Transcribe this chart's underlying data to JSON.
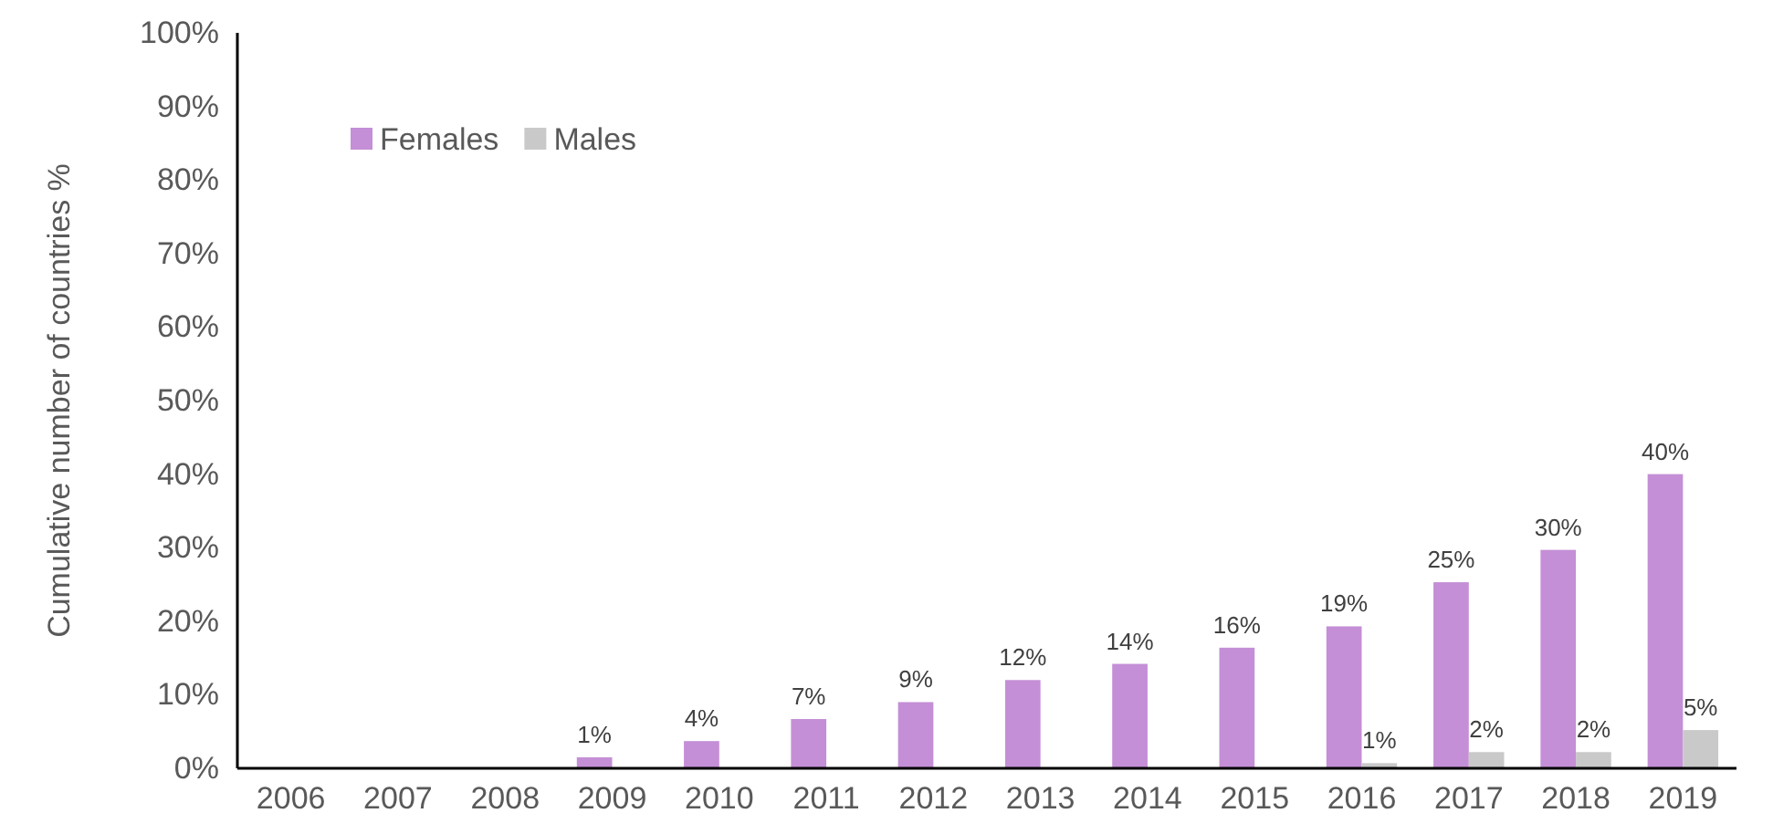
{
  "chart_data": {
    "type": "bar",
    "ylabel": "Cumulative number of countries %",
    "categories": [
      "2006",
      "2007",
      "2008",
      "2009",
      "2010",
      "2011",
      "2012",
      "2013",
      "2014",
      "2015",
      "2016",
      "2017",
      "2018",
      "2019"
    ],
    "series": [
      {
        "name": "Females",
        "color": "#c48fd6",
        "values": [
          0,
          0,
          0,
          1.5,
          3.7,
          6.7,
          9,
          12,
          14.2,
          16.4,
          19.3,
          25.3,
          29.7,
          40
        ],
        "value_labels": [
          null,
          null,
          null,
          "1%",
          "4%",
          "7%",
          "9%",
          "12%",
          "14%",
          "16%",
          "19%",
          "25%",
          "30%",
          "40%"
        ]
      },
      {
        "name": "Males",
        "color": "#c9c9c9",
        "values": [
          0,
          0,
          0,
          0,
          0,
          0,
          0,
          0,
          0,
          0,
          0.7,
          2.2,
          2.2,
          5.2
        ],
        "value_labels": [
          null,
          null,
          null,
          null,
          null,
          null,
          null,
          null,
          null,
          null,
          "1%",
          "2%",
          "2%",
          "5%"
        ]
      }
    ],
    "ylim": [
      0,
      100
    ],
    "yticks": [
      {
        "value": 0,
        "label": "0%"
      },
      {
        "value": 10,
        "label": "10%"
      },
      {
        "value": 20,
        "label": "20%"
      },
      {
        "value": 30,
        "label": "30%"
      },
      {
        "value": 40,
        "label": "40%"
      },
      {
        "value": 50,
        "label": "50%"
      },
      {
        "value": 60,
        "label": "60%"
      },
      {
        "value": 70,
        "label": "70%"
      },
      {
        "value": 80,
        "label": "80%"
      },
      {
        "value": 90,
        "label": "90%"
      },
      {
        "value": 100,
        "label": "100%"
      }
    ],
    "grid": false,
    "legend": "top left"
  }
}
